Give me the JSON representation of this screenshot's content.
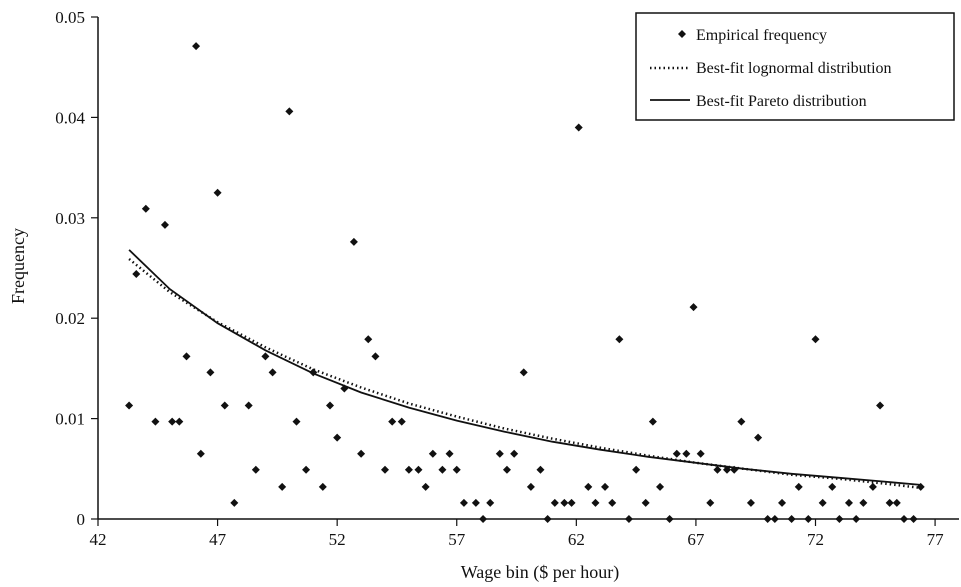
{
  "chart_data": {
    "type": "scatter",
    "title": "",
    "xlabel": "Wage bin ($ per hour)",
    "ylabel": "Frequency",
    "xlim": [
      42,
      78
    ],
    "ylim": [
      0,
      0.05
    ],
    "x_ticks": [
      "42",
      "47",
      "52",
      "57",
      "62",
      "67",
      "72",
      "77"
    ],
    "y_ticks": [
      "0",
      "0.01",
      "0.02",
      "0.03",
      "0.04",
      "0.05"
    ],
    "grid": false,
    "legend_position": "top-right",
    "series": [
      {
        "name": "Empirical frequency",
        "kind": "scatter",
        "marker": "diamond",
        "points": [
          [
            43.3,
            0.0113
          ],
          [
            43.6,
            0.0244
          ],
          [
            44.0,
            0.0309
          ],
          [
            44.4,
            0.0097
          ],
          [
            44.8,
            0.0293
          ],
          [
            45.1,
            0.0097
          ],
          [
            45.4,
            0.0097
          ],
          [
            45.7,
            0.0162
          ],
          [
            46.1,
            0.0471
          ],
          [
            46.3,
            0.0065
          ],
          [
            46.7,
            0.0146
          ],
          [
            47.0,
            0.0325
          ],
          [
            47.3,
            0.0113
          ],
          [
            47.7,
            0.0016
          ],
          [
            48.3,
            0.0113
          ],
          [
            48.6,
            0.0049
          ],
          [
            49.0,
            0.0162
          ],
          [
            49.3,
            0.0146
          ],
          [
            49.7,
            0.0032
          ],
          [
            50.0,
            0.0406
          ],
          [
            50.3,
            0.0097
          ],
          [
            50.7,
            0.0049
          ],
          [
            51.0,
            0.0146
          ],
          [
            51.4,
            0.0032
          ],
          [
            51.7,
            0.0113
          ],
          [
            52.0,
            0.0081
          ],
          [
            52.3,
            0.013
          ],
          [
            52.7,
            0.0276
          ],
          [
            53.0,
            0.0065
          ],
          [
            53.3,
            0.0179
          ],
          [
            53.6,
            0.0162
          ],
          [
            54.0,
            0.0049
          ],
          [
            54.3,
            0.0097
          ],
          [
            54.7,
            0.0097
          ],
          [
            55.0,
            0.0049
          ],
          [
            55.4,
            0.0049
          ],
          [
            55.7,
            0.0032
          ],
          [
            56.0,
            0.0065
          ],
          [
            56.4,
            0.0049
          ],
          [
            56.7,
            0.0065
          ],
          [
            57.0,
            0.0049
          ],
          [
            57.3,
            0.0016
          ],
          [
            57.8,
            0.0016
          ],
          [
            58.1,
            0.0
          ],
          [
            58.4,
            0.0016
          ],
          [
            58.8,
            0.0065
          ],
          [
            59.1,
            0.0049
          ],
          [
            59.4,
            0.0065
          ],
          [
            59.8,
            0.0146
          ],
          [
            60.1,
            0.0032
          ],
          [
            60.5,
            0.0049
          ],
          [
            60.8,
            0.0
          ],
          [
            61.1,
            0.0016
          ],
          [
            61.5,
            0.0016
          ],
          [
            61.8,
            0.0016
          ],
          [
            62.1,
            0.039
          ],
          [
            62.5,
            0.0032
          ],
          [
            62.8,
            0.0016
          ],
          [
            63.2,
            0.0032
          ],
          [
            63.5,
            0.0016
          ],
          [
            63.8,
            0.0179
          ],
          [
            64.2,
            0.0
          ],
          [
            64.5,
            0.0049
          ],
          [
            64.9,
            0.0016
          ],
          [
            65.2,
            0.0097
          ],
          [
            65.5,
            0.0032
          ],
          [
            65.9,
            0.0
          ],
          [
            66.2,
            0.0065
          ],
          [
            66.6,
            0.0065
          ],
          [
            66.9,
            0.0211
          ],
          [
            67.2,
            0.0065
          ],
          [
            67.6,
            0.0016
          ],
          [
            67.9,
            0.0049
          ],
          [
            68.3,
            0.0049
          ],
          [
            68.6,
            0.0049
          ],
          [
            68.9,
            0.0097
          ],
          [
            69.3,
            0.0016
          ],
          [
            69.6,
            0.0081
          ],
          [
            70.0,
            0.0
          ],
          [
            70.3,
            0.0
          ],
          [
            70.6,
            0.0016
          ],
          [
            71.0,
            0.0
          ],
          [
            71.3,
            0.0032
          ],
          [
            71.7,
            0.0
          ],
          [
            72.0,
            0.0179
          ],
          [
            72.3,
            0.0016
          ],
          [
            72.7,
            0.0032
          ],
          [
            73.0,
            0.0
          ],
          [
            73.4,
            0.0016
          ],
          [
            73.7,
            0.0
          ],
          [
            74.0,
            0.0016
          ],
          [
            74.4,
            0.0032
          ],
          [
            74.7,
            0.0113
          ],
          [
            75.1,
            0.0016
          ],
          [
            75.4,
            0.0016
          ],
          [
            75.7,
            0.0
          ],
          [
            76.1,
            0.0
          ],
          [
            76.4,
            0.0032
          ]
        ]
      },
      {
        "name": "Best-fit lognormal distribution",
        "kind": "line",
        "style": "dotted",
        "points": [
          [
            43.3,
            0.0259
          ],
          [
            45,
            0.0226
          ],
          [
            47,
            0.0196
          ],
          [
            49,
            0.0171
          ],
          [
            51,
            0.0149
          ],
          [
            53,
            0.0131
          ],
          [
            55,
            0.0115
          ],
          [
            57,
            0.0102
          ],
          [
            59,
            0.009
          ],
          [
            61,
            0.008
          ],
          [
            63,
            0.0071
          ],
          [
            65,
            0.0063
          ],
          [
            67,
            0.0056
          ],
          [
            69,
            0.005
          ],
          [
            71,
            0.0044
          ],
          [
            73,
            0.004
          ],
          [
            75,
            0.0035
          ],
          [
            76.4,
            0.0031
          ]
        ]
      },
      {
        "name": "Best-fit Pareto distribution",
        "kind": "line",
        "style": "solid",
        "points": [
          [
            43.3,
            0.0268
          ],
          [
            45,
            0.0229
          ],
          [
            47,
            0.0195
          ],
          [
            49,
            0.0168
          ],
          [
            51,
            0.0145
          ],
          [
            53,
            0.0126
          ],
          [
            55,
            0.0111
          ],
          [
            57,
            0.0098
          ],
          [
            59,
            0.0087
          ],
          [
            61,
            0.0077
          ],
          [
            63,
            0.0069
          ],
          [
            65,
            0.0062
          ],
          [
            67,
            0.0056
          ],
          [
            69,
            0.005
          ],
          [
            71,
            0.0045
          ],
          [
            73,
            0.0041
          ],
          [
            75,
            0.0037
          ],
          [
            76.4,
            0.0034
          ]
        ]
      }
    ],
    "colors": {
      "marks": "#111111",
      "background": "#ffffff"
    }
  }
}
